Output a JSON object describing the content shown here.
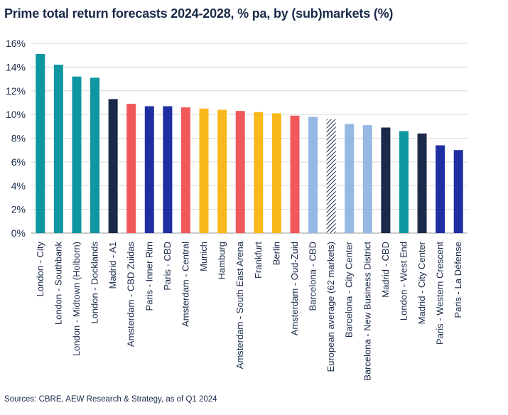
{
  "title": "Prime total return forecasts 2024-2028, % pa, by (sub)markets (%)",
  "source": "Sources: CBRE, AEW Research & Strategy, as of Q1 2024",
  "chart_data": {
    "type": "bar",
    "title": "Prime total return forecasts 2024-2028, % pa, by (sub)markets (%)",
    "xlabel": "",
    "ylabel": "",
    "ylim": [
      0,
      16
    ],
    "yticks": [
      0,
      2,
      4,
      6,
      8,
      10,
      12,
      14,
      16
    ],
    "ytick_labels": [
      "0%",
      "2%",
      "4%",
      "6%",
      "8%",
      "10%",
      "12%",
      "14%",
      "16%"
    ],
    "grid": "horizontal",
    "legend": "none",
    "categories": [
      "London - City",
      "London - Southbank",
      "London - Midtown (Holborn)",
      "London - Docklands",
      "Madrid - A1",
      "Amsterdam - CBD Zuidas",
      "Paris - Inner Rim",
      "Paris - CBD",
      "Amsterdam - Central",
      "Munich",
      "Hamburg",
      "Amsterdam - South East Arena",
      "Frankfurt",
      "Berlin",
      "Amsterdam - Oud-Zuid",
      "Barcelona - CBD",
      "European average (62 markets)",
      "Barcelona - City Center",
      "Barcelona - New Business District",
      "Madrid - CBD",
      "London - West End",
      "Madrid - City Center",
      "Paris - Western Crescent",
      "Paris - La Défense"
    ],
    "values": [
      15.1,
      14.2,
      13.2,
      13.1,
      11.3,
      10.9,
      10.7,
      10.7,
      10.6,
      10.5,
      10.4,
      10.3,
      10.2,
      10.1,
      9.9,
      9.8,
      9.6,
      9.2,
      9.1,
      8.9,
      8.6,
      8.4,
      7.4,
      7.0
    ],
    "colors": [
      "#0e97a0",
      "#0e97a0",
      "#0e97a0",
      "#0e97a0",
      "#1b2a4a",
      "#f0595a",
      "#1f2fa3",
      "#1f2fa3",
      "#f0595a",
      "#f9b81b",
      "#f9b81b",
      "#f0595a",
      "#f9b81b",
      "#f9b81b",
      "#f0595a",
      "#95b9e2",
      "hatch",
      "#95b9e2",
      "#95b9e2",
      "#1b2a4a",
      "#0e97a0",
      "#1b2a4a",
      "#1f2fa3",
      "#1f2fa3"
    ]
  }
}
